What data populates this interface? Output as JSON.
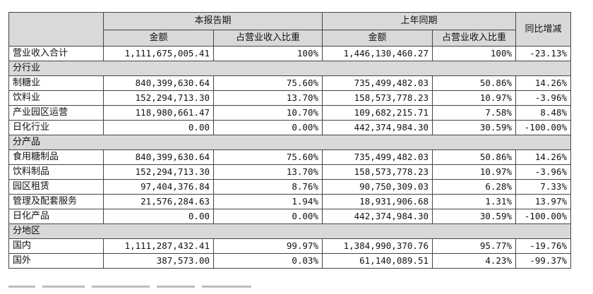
{
  "header": {
    "group_current": "本报告期",
    "group_prior": "上年同期",
    "yoy": "同比增减",
    "col_amount": "金额",
    "col_share": "占营业收入比重"
  },
  "total": {
    "label": "营业收入合计",
    "cur_amount": "1,111,675,005.41",
    "cur_share": "100%",
    "prev_amount": "1,446,130,460.27",
    "prev_share": "100%",
    "yoy": "-23.13%"
  },
  "sections": [
    {
      "title": "分行业",
      "rows": [
        {
          "label": "制糖业",
          "cur_amount": "840,399,630.64",
          "cur_share": "75.60%",
          "prev_amount": "735,499,482.03",
          "prev_share": "50.86%",
          "yoy": "14.26%"
        },
        {
          "label": "饮料业",
          "cur_amount": "152,294,713.30",
          "cur_share": "13.70%",
          "prev_amount": "158,573,778.23",
          "prev_share": "10.97%",
          "yoy": "-3.96%"
        },
        {
          "label": "产业园区运营",
          "cur_amount": "118,980,661.47",
          "cur_share": "10.70%",
          "prev_amount": "109,682,215.71",
          "prev_share": "7.58%",
          "yoy": "8.48%"
        },
        {
          "label": "日化行业",
          "cur_amount": "0.00",
          "cur_share": "0.00%",
          "prev_amount": "442,374,984.30",
          "prev_share": "30.59%",
          "yoy": "-100.00%"
        }
      ]
    },
    {
      "title": "分产品",
      "rows": [
        {
          "label": "食用糖制品",
          "cur_amount": "840,399,630.64",
          "cur_share": "75.60%",
          "prev_amount": "735,499,482.03",
          "prev_share": "50.86%",
          "yoy": "14.26%"
        },
        {
          "label": "饮料制品",
          "cur_amount": "152,294,713.30",
          "cur_share": "13.70%",
          "prev_amount": "158,573,778.23",
          "prev_share": "10.97%",
          "yoy": "-3.96%"
        },
        {
          "label": "园区租赁",
          "cur_amount": "97,404,376.84",
          "cur_share": "8.76%",
          "prev_amount": "90,750,309.03",
          "prev_share": "6.28%",
          "yoy": "7.33%"
        },
        {
          "label": "管理及配套服务",
          "cur_amount": "21,576,284.63",
          "cur_share": "1.94%",
          "prev_amount": "18,931,906.68",
          "prev_share": "1.31%",
          "yoy": "13.97%"
        },
        {
          "label": "日化产品",
          "cur_amount": "0.00",
          "cur_share": "0.00%",
          "prev_amount": "442,374,984.30",
          "prev_share": "30.59%",
          "yoy": "-100.00%"
        }
      ]
    },
    {
      "title": "分地区",
      "rows": [
        {
          "label": "国内",
          "cur_amount": "1,111,287,432.41",
          "cur_share": "99.97%",
          "prev_amount": "1,384,990,370.76",
          "prev_share": "95.77%",
          "yoy": "-19.76%"
        },
        {
          "label": "国外",
          "cur_amount": "387,573.00",
          "cur_share": "0.03%",
          "prev_amount": "61,140,089.51",
          "prev_share": "4.23%",
          "yoy": "-99.37%"
        }
      ]
    }
  ]
}
